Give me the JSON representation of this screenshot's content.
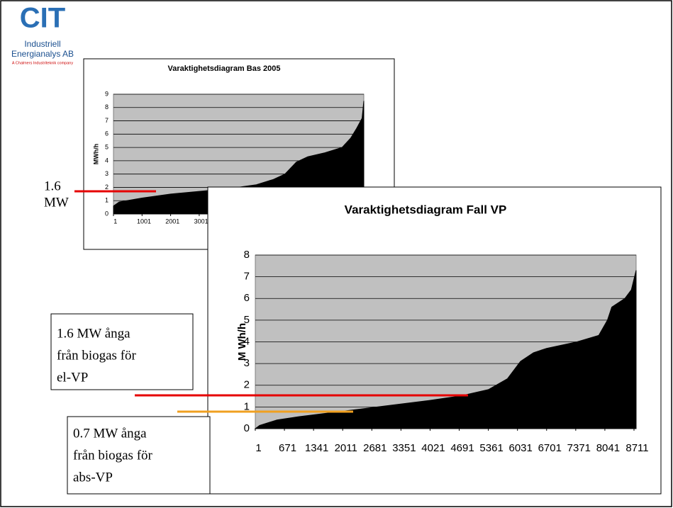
{
  "logo": {
    "mark": "CIT",
    "line1": "Industriell",
    "line2": "Energianalys AB",
    "tagline": "A Chalmers Industriteknik company"
  },
  "annotations": [
    {
      "lines": [
        "1.6",
        "MW"
      ]
    },
    {
      "lines": [
        "1.6 MW ånga",
        "från biogas för",
        "el-VP"
      ]
    },
    {
      "lines": [
        "0.7 MW ånga",
        "från biogas för",
        "abs-VP"
      ]
    }
  ],
  "chart_data": [
    {
      "type": "area",
      "title": "Varaktighetsdiagram Bas 2005",
      "y_label": "MWh/h",
      "x": [
        1,
        200,
        1000,
        2000,
        3000,
        4000,
        5000,
        5600,
        6000,
        6400,
        6800,
        7400,
        8000,
        8300,
        8500,
        8700,
        8760
      ],
      "values": [
        0.6,
        0.9,
        1.2,
        1.5,
        1.7,
        1.9,
        2.2,
        2.6,
        3.0,
        3.9,
        4.3,
        4.6,
        5.0,
        5.7,
        6.4,
        7.2,
        8.5
      ],
      "color": "#000000",
      "xlim": [
        1,
        8760
      ],
      "xticks": [
        1,
        1001,
        2001,
        3001
      ],
      "ylim": [
        0,
        9
      ],
      "yticks": [
        0,
        1,
        2,
        3,
        4,
        5,
        6,
        7,
        8,
        9
      ],
      "grid": true
    },
    {
      "type": "area",
      "title": "Varaktighetsdiagram Fall VP",
      "y_label": "M Wh/h",
      "x": [
        1,
        100,
        500,
        1000,
        2000,
        3000,
        4000,
        4700,
        5361,
        5800,
        6100,
        6400,
        6700,
        7400,
        7900,
        8100,
        8200,
        8500,
        8650,
        8760
      ],
      "values": [
        0.0,
        0.15,
        0.4,
        0.55,
        0.8,
        1.05,
        1.3,
        1.5,
        1.8,
        2.3,
        3.1,
        3.5,
        3.7,
        4.0,
        4.3,
        5.0,
        5.6,
        6.0,
        6.4,
        7.3
      ],
      "color": "#000000",
      "xlim": [
        1,
        8760
      ],
      "xticks": [
        1,
        671,
        1341,
        2011,
        2681,
        3351,
        4021,
        4691,
        5361,
        6031,
        6701,
        7371,
        8041,
        8711
      ],
      "ylim": [
        0,
        8
      ],
      "yticks": [
        0,
        1,
        2,
        3,
        4,
        5,
        6,
        7,
        8
      ],
      "grid": true
    }
  ]
}
